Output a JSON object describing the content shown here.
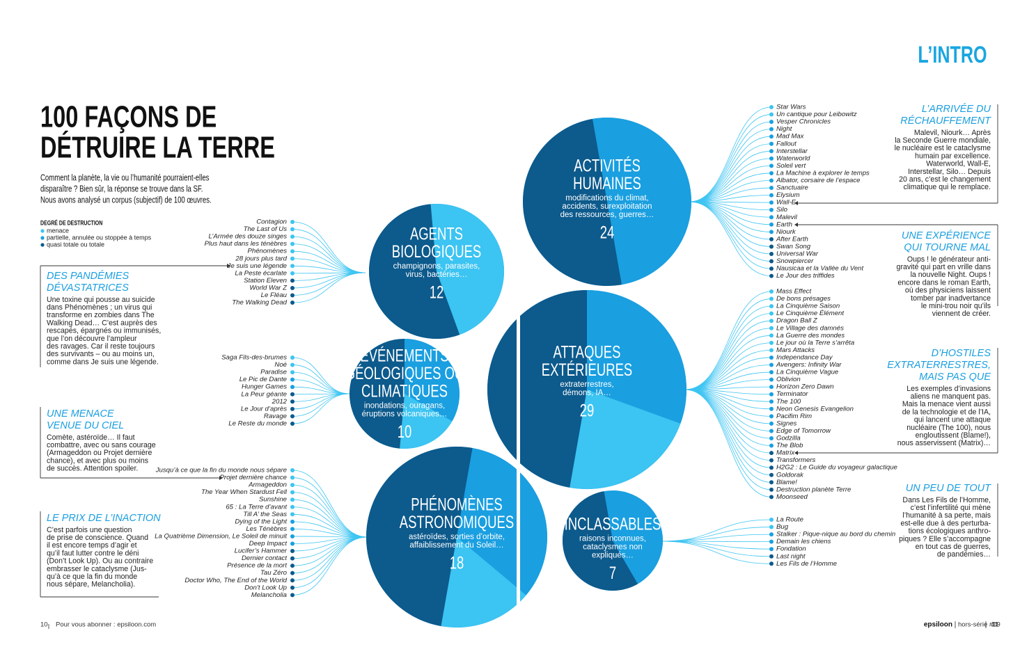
{
  "header": {
    "section": "L’INTRO",
    "title": [
      "100 FAÇONS DE",
      "DÉTRUIRE LA TERRE"
    ],
    "intro": [
      "Comment la planète, la vie ou l’humanité pourraient-elles",
      "disparaître ? Bien sûr, la réponse se trouve dans la SF.",
      "Nous avons analysé un corpus (subjectif) de 100 œuvres."
    ]
  },
  "legend": {
    "title": "DEGRÉ DE DESTRUCTION",
    "items": [
      "menace",
      "partielle, annulée ou stoppée à temps",
      "quasi totale ou totale"
    ]
  },
  "categories": [
    {
      "title": [
        "AGENTS",
        "BIOLOGIQUES"
      ],
      "subtitle": [
        "champignons, parasites,",
        "virus, bactéries…"
      ],
      "count": 12,
      "works": [
        "Contagion",
        "The Last of Us",
        "L’Armée des douze singes",
        "Plus haut dans les ténèbres",
        "Phénomènes",
        "28 jours plus tard",
        "Je suis une légende",
        "La Peste écarlate",
        "Station Eleven",
        "World War Z",
        "Le Fléau",
        "The Walking Dead"
      ]
    },
    {
      "title": [
        "ÉVÉNEMENTS",
        "GÉOLOGIQUES OU",
        "CLIMATIQUES"
      ],
      "subtitle": [
        "inondations, ouragans,",
        "éruptions volcaniques…"
      ],
      "count": 10,
      "works": [
        "Saga Fils-des-brumes",
        "Noé",
        "Paradise",
        "Le Pic de Dante",
        "Hunger Games",
        "La Peur géante",
        "2012",
        "Le Jour d’après",
        "Ravage",
        "Le Reste du monde"
      ]
    },
    {
      "title": [
        "PHÉNOMÈNES",
        "ASTRONOMIQUES"
      ],
      "subtitle": [
        "astéroïdes, sorties d’orbite,",
        "affaiblissement du Soleil…"
      ],
      "count": 18,
      "works": [
        "Jusqu’à ce que la fin du monde nous sépare",
        "Projet dernière chance",
        "Armageddon",
        "The Year When Stardust Fell",
        "Sunshine",
        "65 : La Terre d’avant",
        "Till A’ the Seas",
        "Dying of the Light",
        "Les Ténèbres",
        "La Quatrième Dimension, Le Soleil de minuit",
        "Deep Impact",
        "Lucifer’s Hammer",
        "Dernier contact",
        "Présence de la mort",
        "Tau Zéro",
        "Doctor Who, The End of the World",
        "Don’t Look Up",
        "Melancholia"
      ]
    },
    {
      "title": [
        "ACTIVITÉS",
        "HUMAINES"
      ],
      "subtitle": [
        "modifications du climat,",
        "accidents, surexploitation",
        "des ressources, guerres…"
      ],
      "count": 24,
      "works": [
        "Star Wars",
        "Un cantique pour Leibowitz",
        "Vesper Chronicles",
        "Night",
        "Mad Max",
        "Fallout",
        "Interstellar",
        "Waterworld",
        "Soleil vert",
        "La Machine à explorer le temps",
        "Albator, corsaire de l’espace",
        "Sanctuaire",
        "Elysium",
        "Wall-E",
        "Silo",
        "Malevil",
        "Earth",
        "Niourk",
        "After Earth",
        "Swan Song",
        "Universal War",
        "Snowpiercer",
        "Nausicaa et la Vallée du Vent",
        "Le Jour des triffides"
      ]
    },
    {
      "title": [
        "ATTAQUES",
        "EXTÉRIEURES"
      ],
      "subtitle": [
        "extraterrestres,",
        "démons, IA…"
      ],
      "count": 29,
      "works": [
        "Mass Effect",
        "De bons présages",
        "La Cinquième Saison",
        "Le Cinquième Élément",
        "Dragon Ball Z",
        "Le Village des damnés",
        "La Guerre des mondes",
        "Le jour où la Terre s’arrêta",
        "Mars Attacks",
        "Independance Day",
        "Avengers: Infinity War",
        "La Cinquième Vague",
        "Oblivion",
        "Horizon Zero Dawn",
        "Terminator",
        "The 100",
        "Neon Genesis Evangelion",
        "Pacifim Rim",
        "Signes",
        "Edge of Tomorrow",
        "Godzilla",
        "The Blob",
        "Matrix",
        "Transformers",
        "H2G2 : Le Guide du voyageur galactique",
        "Goldorak",
        "Blame!",
        "Destruction planète Terre",
        "Moonseed"
      ]
    },
    {
      "title": [
        "INCLASSABLES"
      ],
      "subtitle": [
        "raisons inconnues,",
        "cataclysmes non",
        "expliqués…"
      ],
      "count": 7,
      "works": [
        "La Route",
        "Bug",
        "Stalker : Pique-nique au bord du chemin",
        "Demain les chiens",
        "Fondation",
        "Last night",
        "Les Fils de l’Homme"
      ]
    }
  ],
  "sidebars": [
    {
      "title": [
        "DES PANDÉMIES",
        "DÉVASTATRICES"
      ],
      "body": [
        "Une toxine qui pousse au suicide",
        "dans Phénomènes ; un virus qui",
        "transforme en zombies dans The",
        "Walking Dead… C’est auprès des",
        "rescapés, épargnés ou immunisés,",
        "que l’on découvre l’ampleur",
        "des ravages. Car il reste toujours",
        "des survivants – ou au moins un,",
        "comme dans Je suis une légende."
      ]
    },
    {
      "title": [
        "UNE MENACE",
        "VENUE DU CIEL"
      ],
      "body": [
        "Comète, astéroïde… Il faut",
        "combattre, avec ou sans courage",
        "(Armageddon ou Projet dernière",
        "chance), et avec plus ou moins",
        "de succès. Attention spoiler."
      ]
    },
    {
      "title": [
        "LE PRIX DE L’INACTION"
      ],
      "body": [
        "C’est parfois une question",
        "de prise de conscience. Quand",
        "il est encore temps d’agir et",
        "qu’il faut lutter contre le déni",
        "(Don’t Look Up). Ou au contraire",
        "embrasser le cataclysme (Jus-",
        "qu’à ce que la fin du monde",
        "nous sépare, Melancholia)."
      ]
    },
    {
      "title": [
        "L’ARRIVÉE DU",
        "RÉCHAUFFEMENT"
      ],
      "body": [
        "Malevil, Niourk… Après",
        "la Seconde Guerre mondiale,",
        "le nucléaire est le cataclysme",
        "humain par excellence.",
        "Waterworld, Wall-E,",
        "Interstellar, Silo… Depuis",
        "20 ans, c’est le changement",
        "climatique qui le remplace."
      ]
    },
    {
      "title": [
        "UNE EXPÉRIENCE",
        "QUI TOURNE MAL"
      ],
      "body": [
        "Oups ! le générateur anti-",
        "gravité qui part en vrille dans",
        "la nouvelle Night. Oups !",
        "encore dans le roman Earth,",
        "où des physiciens laissent",
        "tomber par inadvertance",
        "le mini-trou noir qu’ils",
        "viennent de créer."
      ]
    },
    {
      "title": [
        "D’HOSTILES",
        "EXTRATERRESTRES,",
        "MAIS PAS QUE"
      ],
      "body": [
        "Les exemples d’invasions",
        "aliens ne manquent pas.",
        "Mais la menace vient aussi",
        "de la technologie et de l’IA,",
        "qui lancent une attaque",
        "nucléaire (The 100), nous",
        "engloutissent (Blame!),",
        "nous asservissent (Matrix)…"
      ]
    },
    {
      "title": [
        "UN PEU DE TOUT"
      ],
      "body": [
        "Dans Les Fils de l’Homme,",
        "c’est l’infertilité qui mène",
        "l’humanité à sa perte, mais",
        "est-elle due à des perturba-",
        "tions écologiques anthro-",
        "piques ? Elle s’accompagne",
        "en tout cas de guerres,",
        "de pandémies…"
      ]
    }
  ],
  "footer": {
    "left_page": "10",
    "subscribe": "Pour vous abonner : epsiloon.com",
    "brand": "epsiloon",
    "issue": "hors-série #19",
    "right_page": "11"
  }
}
